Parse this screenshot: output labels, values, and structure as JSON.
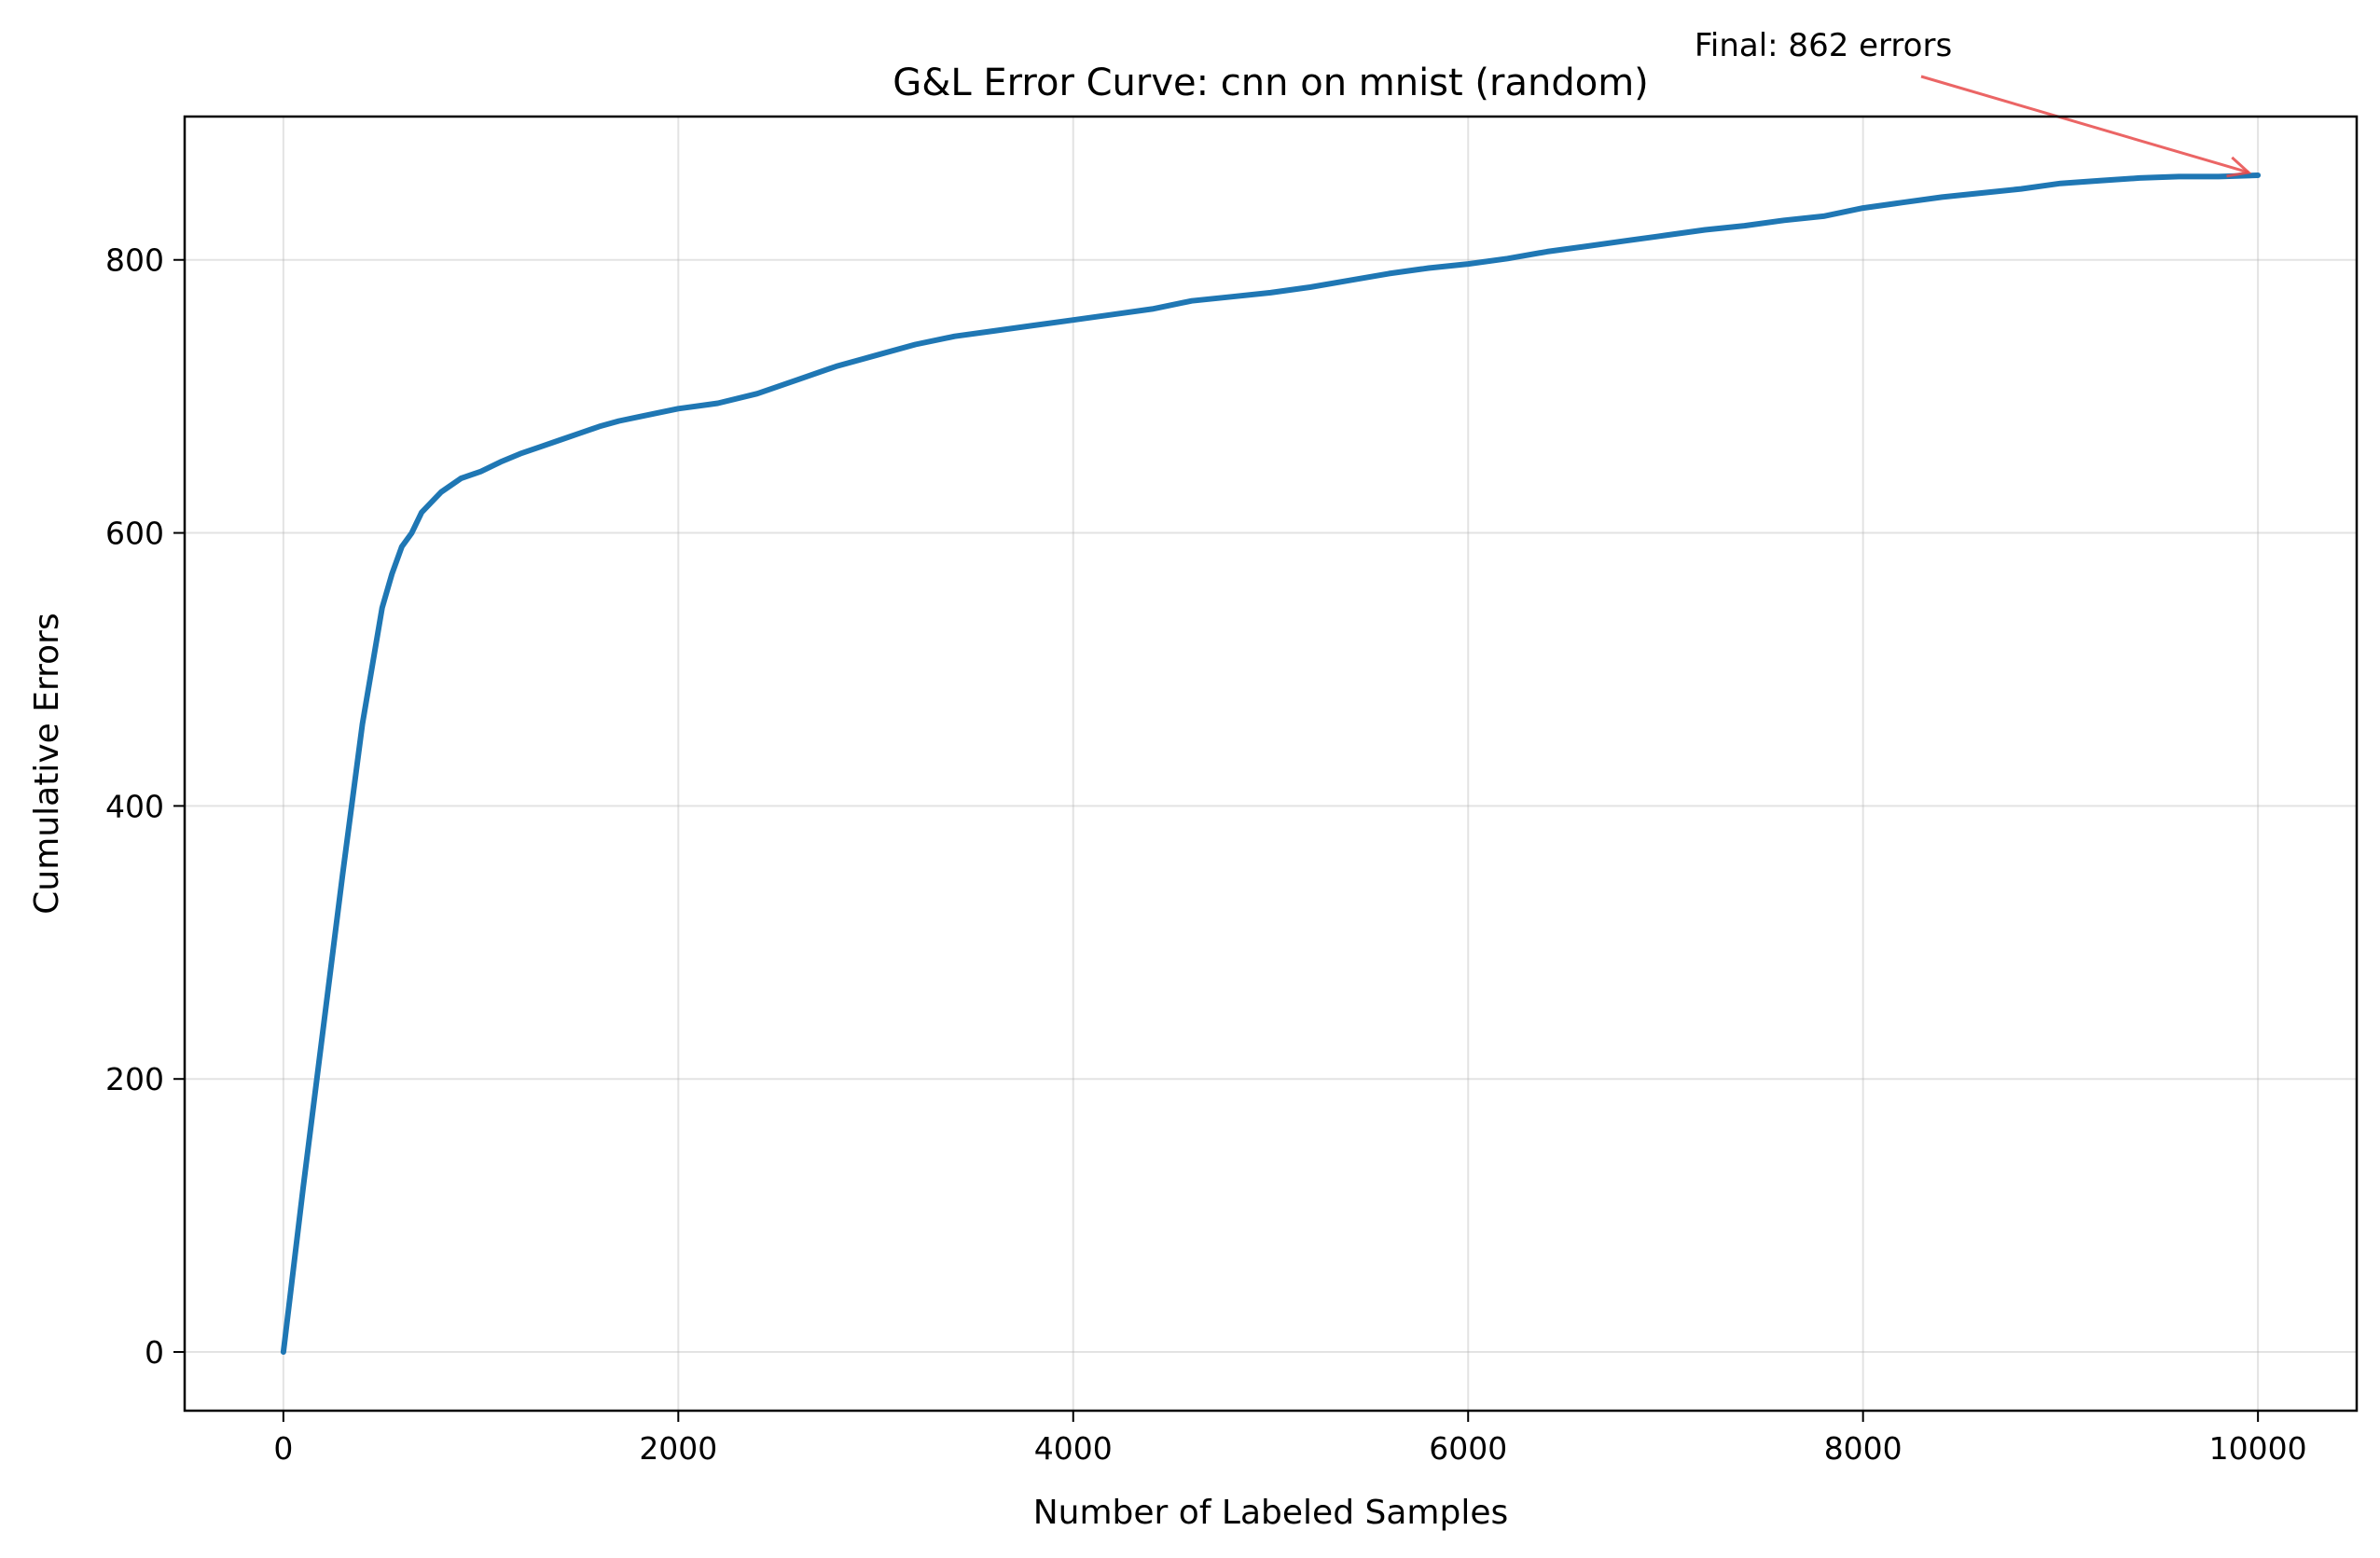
{
  "chart_data": {
    "type": "line",
    "title": "G&L Error Curve: cnn on mnist (random)",
    "xlabel": "Number of Labeled Samples",
    "ylabel": "Cumulative Errors",
    "xlim": [
      -500,
      10500
    ],
    "ylim": [
      -43,
      905
    ],
    "xticks": [
      0,
      2000,
      4000,
      6000,
      8000,
      10000
    ],
    "yticks": [
      0,
      200,
      400,
      600,
      800
    ],
    "grid": true,
    "series": [
      {
        "color": "#1f77b4",
        "x": [
          0,
          100,
          200,
          300,
          400,
          500,
          550,
          600,
          650,
          700,
          800,
          900,
          1000,
          1100,
          1200,
          1300,
          1400,
          1500,
          1600,
          1700,
          1800,
          1900,
          2000,
          2200,
          2400,
          2600,
          2800,
          3000,
          3200,
          3400,
          3600,
          3800,
          4000,
          4200,
          4400,
          4600,
          4800,
          5000,
          5200,
          5400,
          5600,
          5800,
          6000,
          6200,
          6400,
          6600,
          6800,
          7000,
          7200,
          7400,
          7600,
          7800,
          8000,
          8200,
          8400,
          8600,
          8800,
          9000,
          9200,
          9400,
          9600,
          9800,
          10000
        ],
        "y": [
          0,
          120,
          235,
          350,
          460,
          545,
          570,
          590,
          600,
          615,
          630,
          640,
          645,
          652,
          658,
          663,
          668,
          673,
          678,
          682,
          685,
          688,
          691,
          695,
          702,
          712,
          722,
          730,
          738,
          744,
          748,
          752,
          756,
          760,
          764,
          770,
          773,
          776,
          780,
          785,
          790,
          794,
          797,
          801,
          806,
          810,
          814,
          818,
          822,
          825,
          829,
          832,
          838,
          842,
          846,
          849,
          852,
          856,
          858,
          860,
          861,
          861,
          862
        ]
      }
    ],
    "annotation": {
      "text": "Final: 862 errors",
      "point": [
        10000,
        862
      ],
      "color": "#e84a4a"
    }
  }
}
